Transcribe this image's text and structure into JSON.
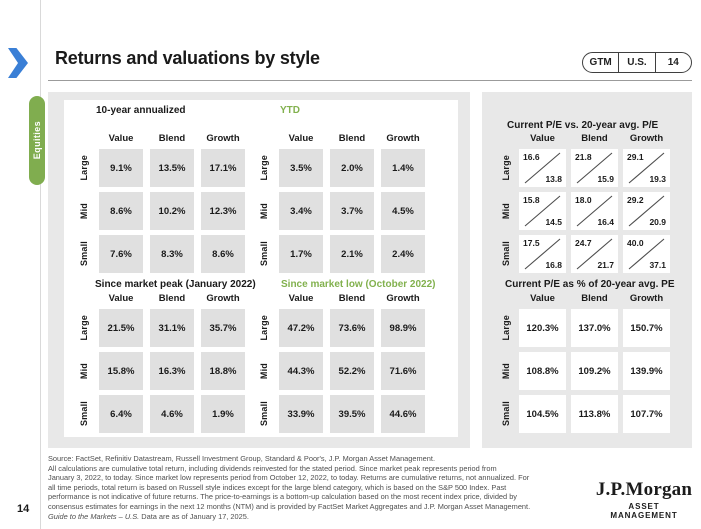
{
  "colors": {
    "green": "#82b14e",
    "blue": "#3a7fd6",
    "panel_gray": "#e8e8e8",
    "cell_gray": "#e0e0e0"
  },
  "sidebar": {
    "tab_label": "Equities"
  },
  "header": {
    "title": "Returns and valuations by style",
    "badges": [
      "GTM",
      "U.S.",
      "14"
    ]
  },
  "page_number": "14",
  "row_labels": [
    "Large",
    "Mid",
    "Small"
  ],
  "col_headers": [
    "Value",
    "Blend",
    "Growth"
  ],
  "grids": {
    "ten_year": {
      "title": "10-year annualized",
      "rows": [
        [
          "9.1%",
          "13.5%",
          "17.1%"
        ],
        [
          "8.6%",
          "10.2%",
          "12.3%"
        ],
        [
          "7.6%",
          "8.3%",
          "8.6%"
        ]
      ]
    },
    "ytd": {
      "title": "YTD",
      "rows": [
        [
          "3.5%",
          "2.0%",
          "1.4%"
        ],
        [
          "3.4%",
          "3.7%",
          "4.5%"
        ],
        [
          "1.7%",
          "2.1%",
          "2.4%"
        ]
      ]
    },
    "since_peak": {
      "title": "Since market peak (January 2022)",
      "rows": [
        [
          "21.5%",
          "31.1%",
          "35.7%"
        ],
        [
          "15.8%",
          "16.3%",
          "18.8%"
        ],
        [
          "6.4%",
          "4.6%",
          "1.9%"
        ]
      ]
    },
    "since_low": {
      "title": "Since market low (October 2022)",
      "rows": [
        [
          "47.2%",
          "73.6%",
          "98.9%"
        ],
        [
          "44.3%",
          "52.2%",
          "71.6%"
        ],
        [
          "33.9%",
          "39.5%",
          "44.6%"
        ]
      ]
    },
    "pe_vs_avg": {
      "title": "Current P/E vs. 20-year avg. P/E",
      "rows": [
        [
          {
            "current": "16.6",
            "avg": "13.8"
          },
          {
            "current": "21.8",
            "avg": "15.9"
          },
          {
            "current": "29.1",
            "avg": "19.3"
          }
        ],
        [
          {
            "current": "15.8",
            "avg": "14.5"
          },
          {
            "current": "18.0",
            "avg": "16.4"
          },
          {
            "current": "29.2",
            "avg": "20.9"
          }
        ],
        [
          {
            "current": "17.5",
            "avg": "16.8"
          },
          {
            "current": "24.7",
            "avg": "21.7"
          },
          {
            "current": "40.0",
            "avg": "37.1"
          }
        ]
      ]
    },
    "pe_pct": {
      "title": "Current P/E as % of 20-year avg. PE",
      "rows": [
        [
          "120.3%",
          "137.0%",
          "150.7%"
        ],
        [
          "108.8%",
          "109.2%",
          "139.9%"
        ],
        [
          "104.5%",
          "113.8%",
          "107.7%"
        ]
      ]
    }
  },
  "footer": {
    "lines": [
      "Source: FactSet, Refinitiv Datastream, Russell Investment Group, Standard & Poor's, J.P. Morgan Asset Management.",
      "All calculations are cumulative total return, including dividends reinvested for the stated period. Since market peak represents period from",
      "January 3, 2022, to today. Since market low represents period from October 12, 2022, to today. Returns are cumulative returns, not annualized. For",
      "all time periods, total return is based on Russell style indices except for the large blend category, which is based on the S&P 500 Index. Past",
      "performance is not indicative of future returns. The price-to-earnings is a bottom-up calculation based on the most recent index price, divided by",
      "consensus estimates for earnings in the next 12 months (NTM) and is provided by FactSet Market Aggregates and J.P. Morgan Asset Management."
    ],
    "gtm_italic": "Guide to the Markets – U.S.",
    "gtm_rest": " Data are as of January 17, 2025."
  },
  "logo": {
    "name": "J.P.Morgan",
    "subtitle": "ASSET MANAGEMENT"
  },
  "chart_data": [
    {
      "type": "table",
      "title": "10-year annualized",
      "unit": "%",
      "columns": [
        "Value",
        "Blend",
        "Growth"
      ],
      "rows": [
        "Large",
        "Mid",
        "Small"
      ],
      "values": [
        [
          9.1,
          13.5,
          17.1
        ],
        [
          8.6,
          10.2,
          12.3
        ],
        [
          7.6,
          8.3,
          8.6
        ]
      ]
    },
    {
      "type": "table",
      "title": "YTD",
      "unit": "%",
      "columns": [
        "Value",
        "Blend",
        "Growth"
      ],
      "rows": [
        "Large",
        "Mid",
        "Small"
      ],
      "values": [
        [
          3.5,
          2.0,
          1.4
        ],
        [
          3.4,
          3.7,
          4.5
        ],
        [
          1.7,
          2.1,
          2.4
        ]
      ]
    },
    {
      "type": "table",
      "title": "Since market peak (January 2022)",
      "unit": "%",
      "columns": [
        "Value",
        "Blend",
        "Growth"
      ],
      "rows": [
        "Large",
        "Mid",
        "Small"
      ],
      "values": [
        [
          21.5,
          31.1,
          35.7
        ],
        [
          15.8,
          16.3,
          18.8
        ],
        [
          6.4,
          4.6,
          1.9
        ]
      ]
    },
    {
      "type": "table",
      "title": "Since market low (October 2022)",
      "unit": "%",
      "columns": [
        "Value",
        "Blend",
        "Growth"
      ],
      "rows": [
        "Large",
        "Mid",
        "Small"
      ],
      "values": [
        [
          47.2,
          73.6,
          98.9
        ],
        [
          44.3,
          52.2,
          71.6
        ],
        [
          33.9,
          39.5,
          44.6
        ]
      ]
    },
    {
      "type": "table",
      "title": "Current P/E vs. 20-year avg. P/E",
      "columns": [
        "Value",
        "Blend",
        "Growth"
      ],
      "rows": [
        "Large",
        "Mid",
        "Small"
      ],
      "current_pe": [
        [
          16.6,
          21.8,
          29.1
        ],
        [
          15.8,
          18.0,
          29.2
        ],
        [
          17.5,
          24.7,
          40.0
        ]
      ],
      "avg_20yr_pe": [
        [
          13.8,
          15.9,
          19.3
        ],
        [
          14.5,
          16.4,
          20.9
        ],
        [
          16.8,
          21.7,
          37.1
        ]
      ]
    },
    {
      "type": "table",
      "title": "Current P/E as % of 20-year avg. PE",
      "unit": "%",
      "columns": [
        "Value",
        "Blend",
        "Growth"
      ],
      "rows": [
        "Large",
        "Mid",
        "Small"
      ],
      "values": [
        [
          120.3,
          137.0,
          150.7
        ],
        [
          108.8,
          109.2,
          139.9
        ],
        [
          104.5,
          113.8,
          107.7
        ]
      ]
    }
  ]
}
